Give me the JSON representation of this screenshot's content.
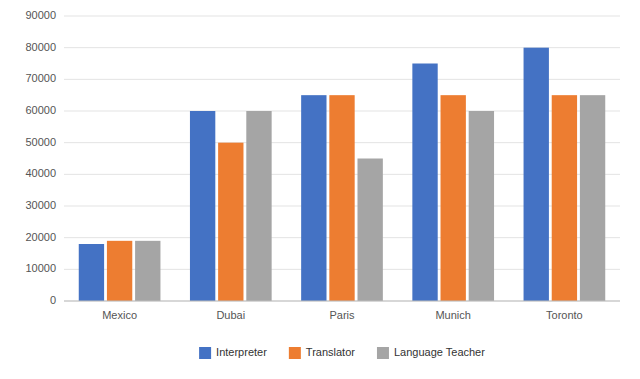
{
  "chart_data": {
    "type": "bar",
    "categories": [
      "Mexico",
      "Dubai",
      "Paris",
      "Munich",
      "Toronto"
    ],
    "series": [
      {
        "name": "Interpreter",
        "color": "#4472C4",
        "values": [
          18000,
          60000,
          65000,
          75000,
          80000
        ]
      },
      {
        "name": "Translator",
        "color": "#ED7D31",
        "values": [
          19000,
          50000,
          65000,
          65000,
          65000
        ]
      },
      {
        "name": "Language Teacher",
        "color": "#A5A5A5",
        "values": [
          19000,
          60000,
          45000,
          60000,
          65000
        ]
      }
    ],
    "ylim": [
      0,
      90000
    ],
    "yticks": [
      0,
      10000,
      20000,
      30000,
      40000,
      50000,
      60000,
      70000,
      80000,
      90000
    ],
    "grid": true,
    "legend": "bottom"
  }
}
